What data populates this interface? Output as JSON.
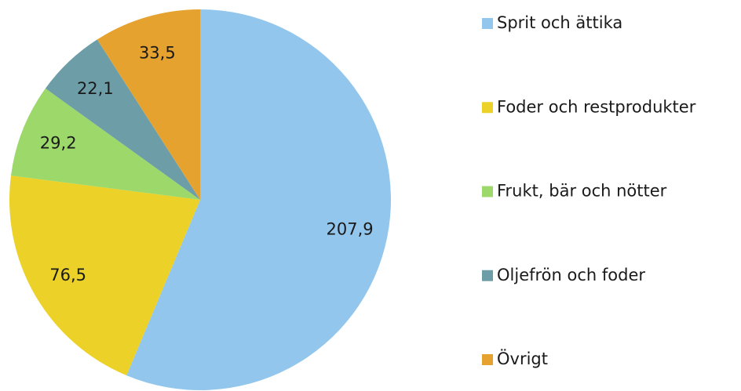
{
  "chart_data": {
    "type": "pie",
    "categories": [
      "Sprit och ättika",
      "Foder och restprodukter",
      "Frukt, bär och nötter",
      "Oljefrön och foder",
      "Övrigt"
    ],
    "values": [
      207.9,
      76.5,
      29.2,
      22.1,
      33.5
    ],
    "value_labels": [
      "207,9",
      "76,5",
      "29,2",
      "22,1",
      "33,5"
    ],
    "colors": [
      "#93c6ec",
      "#ecd228",
      "#9dd86b",
      "#6d9ea8",
      "#e6a22e"
    ],
    "legend": "right"
  }
}
